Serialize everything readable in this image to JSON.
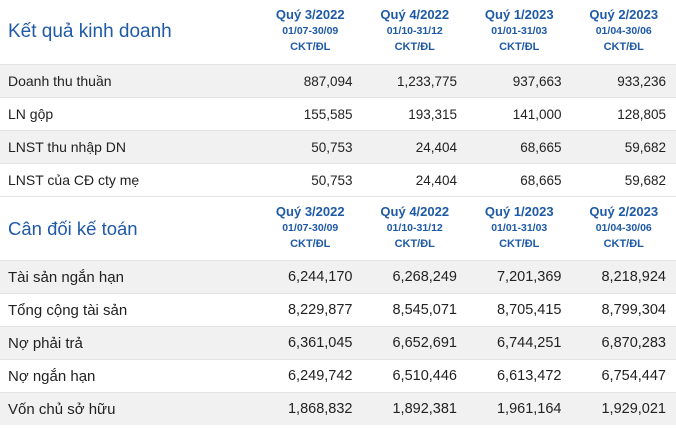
{
  "columns": [
    {
      "quarter": "Quý 3/2022",
      "dates": "01/07-30/09",
      "note": "CKT/ĐL"
    },
    {
      "quarter": "Quý 4/2022",
      "dates": "01/10-31/12",
      "note": "CKT/ĐL"
    },
    {
      "quarter": "Quý 1/2023",
      "dates": "01/01-31/03",
      "note": "CKT/ĐL"
    },
    {
      "quarter": "Quý 2/2023",
      "dates": "01/04-30/06",
      "note": "CKT/ĐL"
    }
  ],
  "business_results": {
    "title": "Kết quả kinh doanh",
    "rows": [
      {
        "label": "Doanh thu thuần",
        "values": [
          "887,094",
          "1,233,775",
          "937,663",
          "933,236"
        ]
      },
      {
        "label": "LN gộp",
        "values": [
          "155,585",
          "193,315",
          "141,000",
          "128,805"
        ]
      },
      {
        "label": "LNST thu nhập DN",
        "values": [
          "50,753",
          "24,404",
          "68,665",
          "59,682"
        ]
      },
      {
        "label": "LNST của CĐ cty mẹ",
        "values": [
          "50,753",
          "24,404",
          "68,665",
          "59,682"
        ]
      }
    ]
  },
  "balance_sheet": {
    "title": "Cân đối kế toán",
    "rows": [
      {
        "label": "Tài sản ngắn hạn",
        "values": [
          "6,244,170",
          "6,268,249",
          "7,201,369",
          "8,218,924"
        ]
      },
      {
        "label": "Tổng cộng tài sản",
        "values": [
          "8,229,877",
          "8,545,071",
          "8,705,415",
          "8,799,304"
        ]
      },
      {
        "label": "Nợ phải trả",
        "values": [
          "6,361,045",
          "6,652,691",
          "6,744,251",
          "6,870,283"
        ]
      },
      {
        "label": "Nợ ngắn hạn",
        "values": [
          "6,249,742",
          "6,510,446",
          "6,613,472",
          "6,754,447"
        ]
      },
      {
        "label": "Vốn chủ sở hữu",
        "values": [
          "1,868,832",
          "1,892,381",
          "1,961,164",
          "1,929,021"
        ]
      }
    ]
  }
}
